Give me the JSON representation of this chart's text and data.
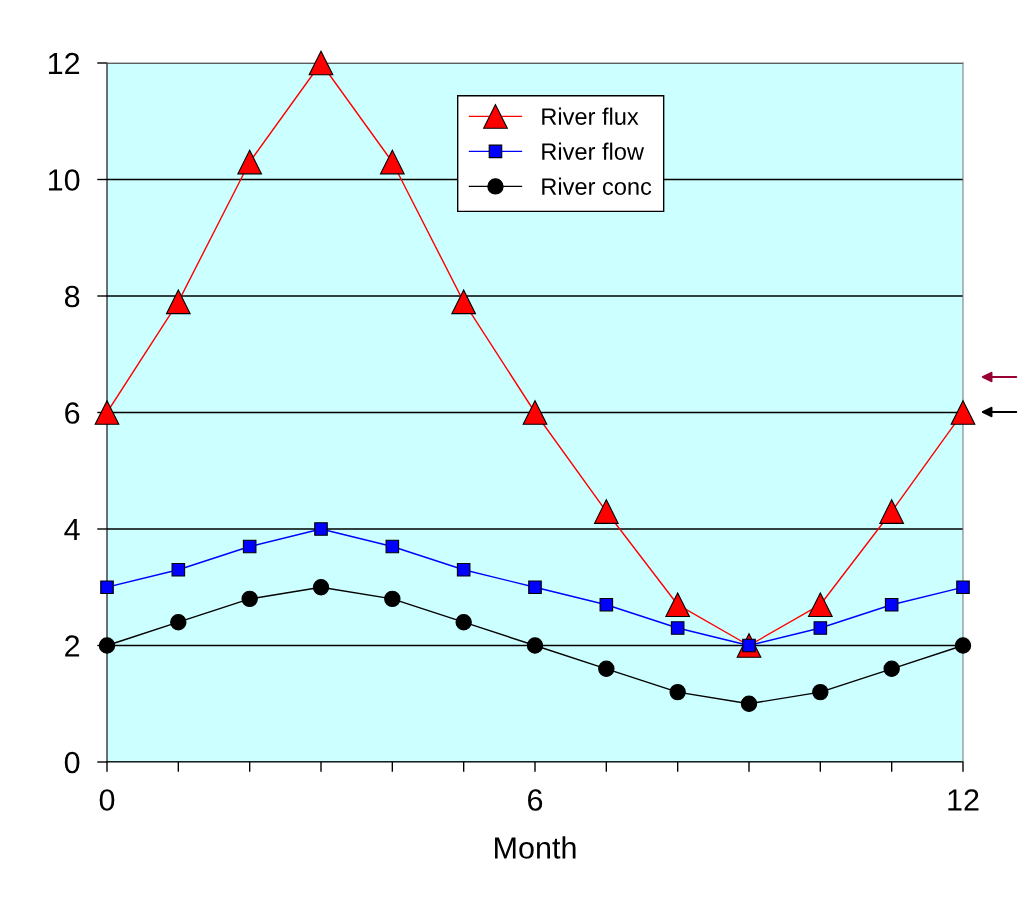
{
  "chart_data": {
    "type": "line",
    "xlabel": "Month",
    "x": [
      0,
      1,
      2,
      3,
      4,
      5,
      6,
      7,
      8,
      9,
      10,
      11,
      12
    ],
    "series": [
      {
        "name": "River flux",
        "color": "#ff0000",
        "marker": "triangle",
        "values": [
          6,
          7.9,
          10.3,
          12,
          10.3,
          7.9,
          6,
          4.3,
          2.7,
          2,
          2.7,
          4.3,
          6
        ]
      },
      {
        "name": "River flow",
        "color": "#0000ff",
        "marker": "square",
        "values": [
          3,
          3.3,
          3.7,
          4,
          3.7,
          3.3,
          3,
          2.7,
          2.3,
          2,
          2.3,
          2.7,
          3
        ]
      },
      {
        "name": "River conc",
        "color": "#000000",
        "marker": "circle",
        "values": [
          2,
          2.4,
          2.8,
          3,
          2.8,
          2.4,
          2,
          1.6,
          1.2,
          1,
          1.2,
          1.6,
          2
        ]
      }
    ],
    "xlim": [
      0,
      12
    ],
    "xticks": [
      0,
      {
        "value": 1,
        "label": null
      },
      {
        "value": 2,
        "label": null
      },
      {
        "value": 3,
        "label": null
      },
      {
        "value": 4,
        "label": null
      },
      {
        "value": 5,
        "label": null
      },
      6,
      {
        "value": 7,
        "label": null
      },
      {
        "value": 8,
        "label": null
      },
      {
        "value": 9,
        "label": null
      },
      {
        "value": 10,
        "label": null
      },
      {
        "value": 11,
        "label": null
      },
      12
    ],
    "ylim": [
      0,
      12
    ],
    "yticks": [
      0,
      2,
      4,
      6,
      8,
      10,
      12
    ],
    "grid": "y",
    "legend": "top"
  }
}
